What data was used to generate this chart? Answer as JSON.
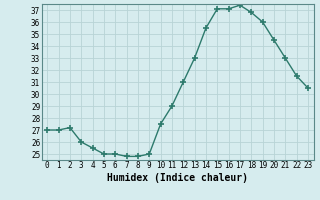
{
  "x": [
    0,
    1,
    2,
    3,
    4,
    5,
    6,
    7,
    8,
    9,
    10,
    11,
    12,
    13,
    14,
    15,
    16,
    17,
    18,
    19,
    20,
    21,
    22,
    23
  ],
  "y": [
    27.0,
    27.0,
    27.2,
    26.0,
    25.5,
    25.0,
    25.0,
    24.8,
    24.8,
    25.0,
    27.5,
    29.0,
    31.0,
    33.0,
    35.5,
    37.1,
    37.1,
    37.4,
    36.8,
    36.0,
    34.5,
    33.0,
    31.5,
    30.5
  ],
  "line_color": "#2d7a6c",
  "marker": "+",
  "marker_size": 5,
  "marker_lw": 1.2,
  "bg_color": "#d6ecee",
  "grid_color": "#b8d4d6",
  "xlabel": "Humidex (Indice chaleur)",
  "xlim": [
    -0.5,
    23.5
  ],
  "ylim": [
    24.5,
    37.5
  ],
  "yticks": [
    25,
    26,
    27,
    28,
    29,
    30,
    31,
    32,
    33,
    34,
    35,
    36,
    37
  ],
  "xticks": [
    0,
    1,
    2,
    3,
    4,
    5,
    6,
    7,
    8,
    9,
    10,
    11,
    12,
    13,
    14,
    15,
    16,
    17,
    18,
    19,
    20,
    21,
    22,
    23
  ],
  "xtick_labels": [
    "0",
    "1",
    "2",
    "3",
    "4",
    "5",
    "6",
    "7",
    "8",
    "9",
    "10",
    "11",
    "12",
    "13",
    "14",
    "15",
    "16",
    "17",
    "18",
    "19",
    "20",
    "21",
    "22",
    "23"
  ],
  "tick_fontsize": 5.5,
  "xlabel_fontsize": 7,
  "line_width": 1.0
}
